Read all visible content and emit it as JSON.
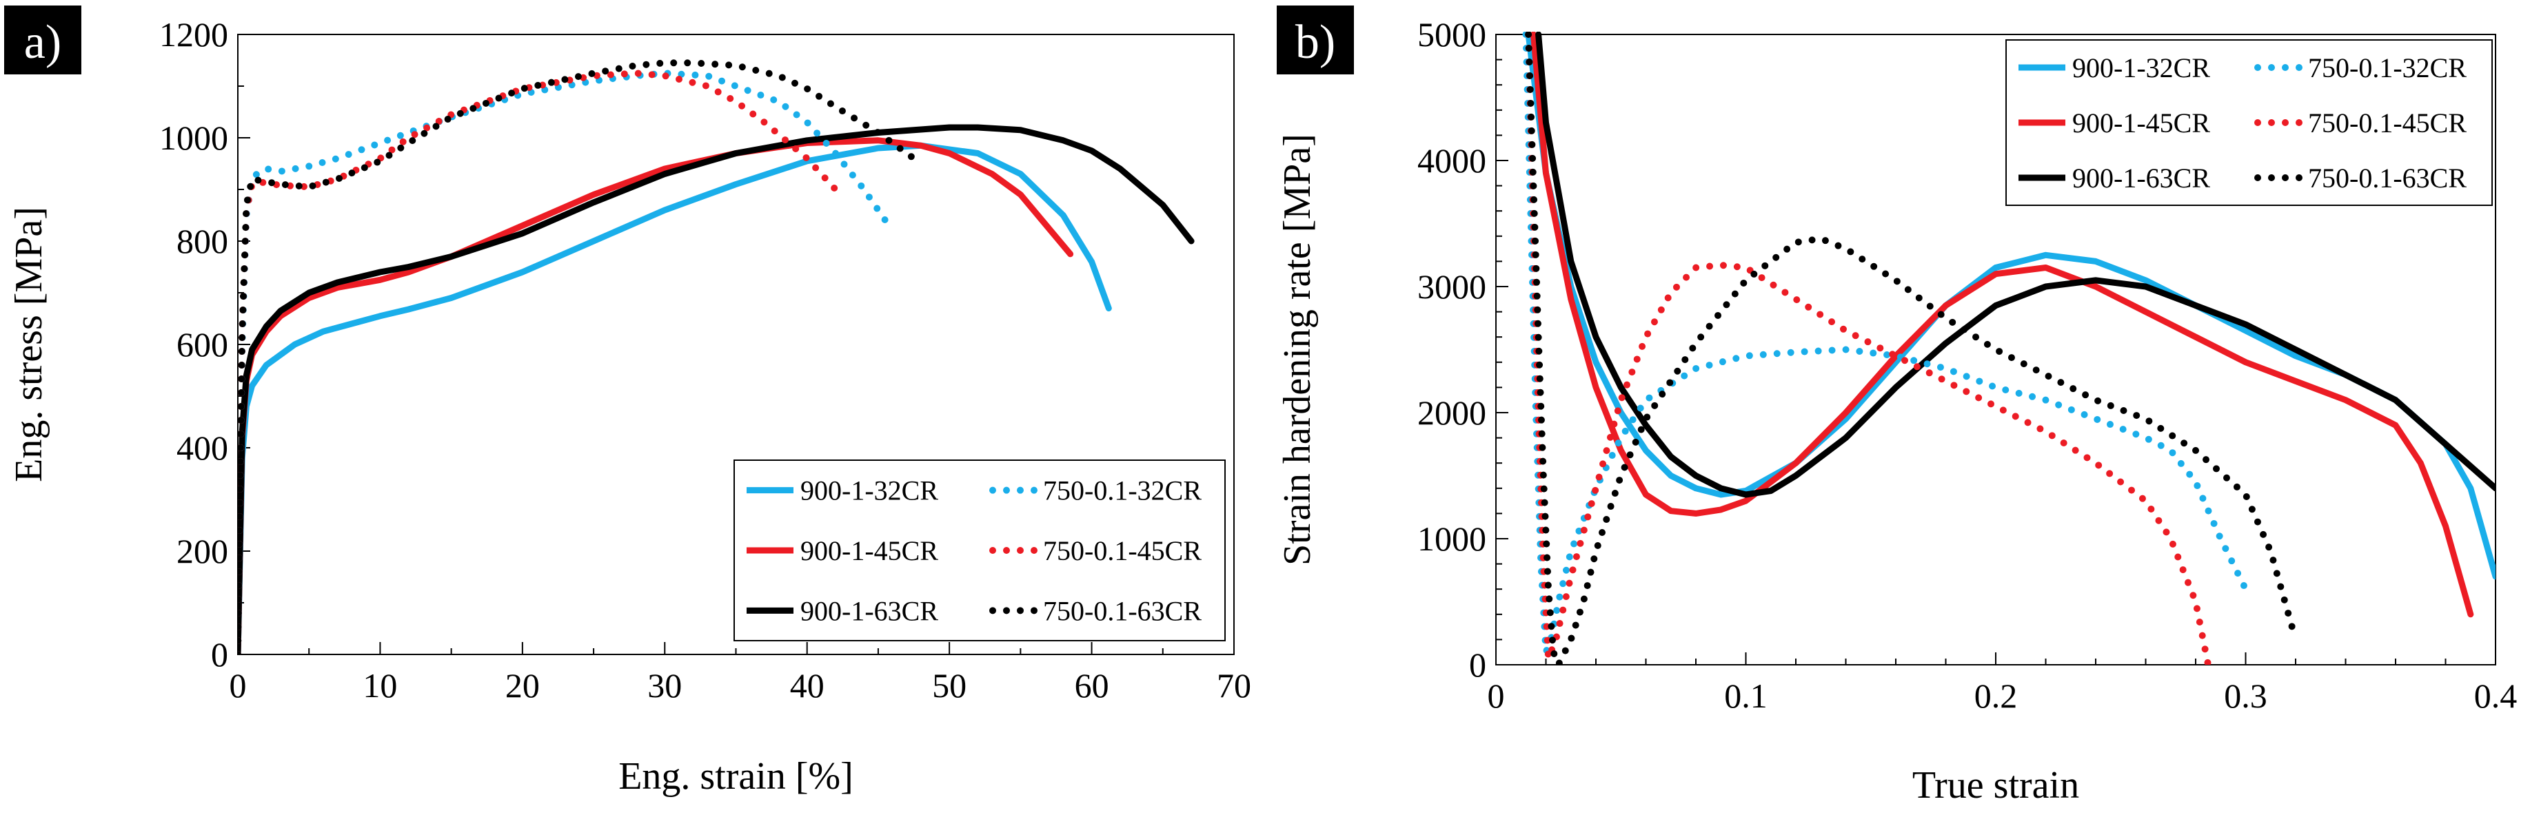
{
  "chart_data": [
    {
      "type": "line",
      "panel_label": "a)",
      "xlabel": "Eng. strain [%]",
      "ylabel": "Eng. stress [MPa]",
      "xlim": [
        0,
        70
      ],
      "ylim": [
        0,
        1200
      ],
      "xticks": [
        "0",
        "10",
        "20",
        "30",
        "40",
        "50",
        "60",
        "70"
      ],
      "yticks": [
        "0",
        "200",
        "400",
        "600",
        "800",
        "1000",
        "1200"
      ],
      "grid": false,
      "legend_position": "bottom-right",
      "series": [
        {
          "name": "900-1-32CR",
          "color": "#1aaeea",
          "style": "solid",
          "x": [
            0,
            0.3,
            0.6,
            1,
            2,
            4,
            6,
            8,
            10,
            12,
            15,
            20,
            25,
            30,
            35,
            40,
            45,
            48,
            52,
            55,
            58,
            60,
            61.2
          ],
          "y": [
            0,
            380,
            480,
            520,
            560,
            600,
            625,
            640,
            655,
            668,
            690,
            740,
            800,
            860,
            910,
            955,
            980,
            985,
            970,
            930,
            850,
            760,
            670
          ]
        },
        {
          "name": "900-1-45CR",
          "color": "#ec1c24",
          "style": "solid",
          "x": [
            0,
            0.3,
            0.6,
            1,
            2,
            3,
            5,
            7,
            10,
            12,
            15,
            20,
            25,
            30,
            35,
            40,
            45,
            48,
            50,
            53,
            55,
            58.5
          ],
          "y": [
            0,
            420,
            530,
            580,
            625,
            655,
            690,
            710,
            725,
            740,
            770,
            830,
            890,
            940,
            970,
            990,
            995,
            985,
            970,
            930,
            890,
            775
          ]
        },
        {
          "name": "900-1-63CR",
          "color": "#000000",
          "style": "solid",
          "x": [
            0,
            0.3,
            0.6,
            1,
            2,
            3,
            5,
            7,
            10,
            12,
            15,
            20,
            25,
            30,
            35,
            40,
            45,
            50,
            52,
            55,
            58,
            60,
            62,
            65,
            67
          ],
          "y": [
            0,
            430,
            540,
            590,
            635,
            665,
            700,
            720,
            740,
            750,
            770,
            815,
            875,
            930,
            970,
            995,
            1010,
            1020,
            1020,
            1015,
            995,
            975,
            940,
            870,
            800
          ]
        },
        {
          "name": "750-0.1-32CR",
          "color": "#1aaeea",
          "style": "dotted",
          "x": [
            0,
            0.3,
            0.6,
            1,
            1.5,
            2,
            3,
            5,
            7,
            10,
            12,
            15,
            20,
            25,
            28,
            30,
            33,
            35,
            38,
            40,
            42,
            44,
            46
          ],
          "y": [
            0,
            600,
            850,
            920,
            935,
            940,
            935,
            945,
            960,
            990,
            1010,
            1040,
            1085,
            1110,
            1120,
            1125,
            1120,
            1100,
            1070,
            1030,
            970,
            900,
            820
          ]
        },
        {
          "name": "750-0.1-45CR",
          "color": "#ec1c24",
          "style": "dotted",
          "x": [
            0,
            0.3,
            0.6,
            1,
            1.5,
            2,
            3,
            5,
            7,
            10,
            12,
            15,
            20,
            25,
            28,
            30,
            33,
            35,
            37,
            40,
            42
          ],
          "y": [
            0,
            620,
            860,
            910,
            915,
            912,
            908,
            905,
            920,
            960,
            1000,
            1045,
            1095,
            1120,
            1125,
            1120,
            1100,
            1070,
            1030,
            960,
            900
          ]
        },
        {
          "name": "750-0.1-63CR",
          "color": "#000000",
          "style": "dotted",
          "x": [
            0,
            0.3,
            0.6,
            1,
            2,
            3,
            5,
            7,
            10,
            12,
            15,
            20,
            25,
            28,
            30,
            32,
            35,
            38,
            40,
            42,
            45,
            48
          ],
          "y": [
            0,
            620,
            870,
            920,
            915,
            910,
            905,
            920,
            955,
            990,
            1040,
            1095,
            1125,
            1140,
            1145,
            1145,
            1140,
            1120,
            1095,
            1060,
            1010,
            950
          ]
        }
      ]
    },
    {
      "type": "line",
      "panel_label": "b)",
      "xlabel": "True strain",
      "ylabel": "Strain hardening rate [MPa]",
      "xlim": [
        0,
        0.4
      ],
      "ylim": [
        0,
        5000
      ],
      "xticks": [
        "0",
        "0.1",
        "0.2",
        "0.3",
        "0.4"
      ],
      "yticks": [
        "0",
        "1000",
        "2000",
        "3000",
        "4000",
        "5000"
      ],
      "grid": false,
      "legend_position": "top-right",
      "series": [
        {
          "name": "900-1-32CR",
          "color": "#1aaeea",
          "style": "solid",
          "x": [
            0.013,
            0.02,
            0.03,
            0.04,
            0.05,
            0.06,
            0.07,
            0.08,
            0.09,
            0.1,
            0.12,
            0.14,
            0.16,
            0.18,
            0.2,
            0.22,
            0.24,
            0.26,
            0.28,
            0.3,
            0.32,
            0.34,
            0.36,
            0.38,
            0.39,
            0.4
          ],
          "y": [
            5000,
            3900,
            3000,
            2400,
            2000,
            1700,
            1500,
            1400,
            1350,
            1380,
            1600,
            1950,
            2400,
            2850,
            3150,
            3250,
            3200,
            3050,
            2850,
            2650,
            2450,
            2300,
            2100,
            1750,
            1400,
            700
          ]
        },
        {
          "name": "900-1-45CR",
          "color": "#ec1c24",
          "style": "solid",
          "x": [
            0.015,
            0.02,
            0.03,
            0.04,
            0.05,
            0.06,
            0.07,
            0.08,
            0.09,
            0.1,
            0.12,
            0.14,
            0.16,
            0.18,
            0.2,
            0.22,
            0.24,
            0.26,
            0.28,
            0.3,
            0.32,
            0.34,
            0.36,
            0.37,
            0.38,
            0.39
          ],
          "y": [
            5000,
            3900,
            2900,
            2200,
            1700,
            1350,
            1220,
            1200,
            1230,
            1300,
            1600,
            2000,
            2450,
            2850,
            3100,
            3150,
            3000,
            2800,
            2600,
            2400,
            2250,
            2100,
            1900,
            1600,
            1100,
            400
          ]
        },
        {
          "name": "900-1-63CR",
          "color": "#000000",
          "style": "solid",
          "x": [
            0.017,
            0.02,
            0.03,
            0.04,
            0.05,
            0.06,
            0.07,
            0.08,
            0.09,
            0.1,
            0.11,
            0.12,
            0.14,
            0.16,
            0.18,
            0.2,
            0.22,
            0.24,
            0.26,
            0.28,
            0.3,
            0.32,
            0.34,
            0.36,
            0.38,
            0.4
          ],
          "y": [
            5000,
            4300,
            3200,
            2600,
            2200,
            1900,
            1650,
            1500,
            1400,
            1350,
            1380,
            1500,
            1800,
            2200,
            2550,
            2850,
            3000,
            3050,
            3000,
            2850,
            2700,
            2500,
            2300,
            2100,
            1750,
            1400
          ]
        },
        {
          "name": "750-0.1-32CR",
          "color": "#1aaeea",
          "style": "dotted",
          "x": [
            0.012,
            0.014,
            0.016,
            0.018,
            0.02,
            0.022,
            0.025,
            0.03,
            0.04,
            0.05,
            0.06,
            0.08,
            0.1,
            0.12,
            0.14,
            0.16,
            0.18,
            0.2,
            0.22,
            0.24,
            0.26,
            0.27,
            0.28,
            0.29,
            0.3
          ],
          "y": [
            5000,
            3500,
            2000,
            800,
            100,
            200,
            500,
            900,
            1400,
            1800,
            2100,
            2350,
            2450,
            2480,
            2500,
            2450,
            2350,
            2200,
            2100,
            1950,
            1800,
            1700,
            1450,
            1000,
            600
          ]
        },
        {
          "name": "750-0.1-45CR",
          "color": "#ec1c24",
          "style": "dotted",
          "x": [
            0.013,
            0.015,
            0.017,
            0.019,
            0.021,
            0.024,
            0.03,
            0.04,
            0.05,
            0.06,
            0.07,
            0.08,
            0.09,
            0.1,
            0.12,
            0.14,
            0.16,
            0.18,
            0.2,
            0.22,
            0.24,
            0.26,
            0.27,
            0.28,
            0.285
          ],
          "y": [
            5000,
            3500,
            2000,
            800,
            50,
            200,
            700,
            1400,
            2100,
            2600,
            2950,
            3150,
            3170,
            3150,
            2900,
            2650,
            2450,
            2250,
            2050,
            1850,
            1600,
            1300,
            1000,
            500,
            0
          ]
        },
        {
          "name": "750-0.1-63CR",
          "color": "#000000",
          "style": "dotted",
          "x": [
            0.013,
            0.015,
            0.017,
            0.019,
            0.021,
            0.023,
            0.025,
            0.03,
            0.035,
            0.04,
            0.05,
            0.06,
            0.08,
            0.1,
            0.12,
            0.13,
            0.14,
            0.16,
            0.18,
            0.2,
            0.22,
            0.24,
            0.26,
            0.28,
            0.3,
            0.31,
            0.32
          ],
          "y": [
            5000,
            3800,
            2600,
            1500,
            600,
            100,
            0,
            200,
            500,
            900,
            1500,
            1950,
            2550,
            3050,
            3350,
            3380,
            3300,
            3050,
            2750,
            2500,
            2300,
            2100,
            1950,
            1700,
            1350,
            900,
            200
          ]
        }
      ]
    }
  ]
}
